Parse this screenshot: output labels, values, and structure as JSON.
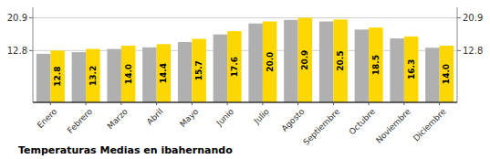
{
  "chart_data": {
    "type": "bar",
    "title": "Temperaturas Medias en ibahernando",
    "categories": [
      "Enero",
      "Febrero",
      "Marzo",
      "Abril",
      "Mayo",
      "Junio",
      "Julio",
      "Agosto",
      "Septiembre",
      "Octubre",
      "Noviembre",
      "Diciembre"
    ],
    "series": [
      {
        "color": "#B0B0B0",
        "values": [
          12.0,
          12.4,
          13.2,
          13.6,
          14.9,
          16.8,
          19.5,
          20.4,
          20.0,
          18.0,
          15.8,
          13.5
        ]
      },
      {
        "color": "#FFD700",
        "data_labels": true,
        "values": [
          12.8,
          13.2,
          14.0,
          14.4,
          15.7,
          17.6,
          20.0,
          20.9,
          20.5,
          18.5,
          16.3,
          14.0
        ],
        "value_labels": [
          "12.8",
          "13.2",
          "14.0",
          "14.4",
          "15.7",
          "17.6",
          "20.0",
          "20.9",
          "20.5",
          "18.5",
          "16.3",
          "14.0"
        ]
      }
    ],
    "ylim": [
      0,
      23.5
    ],
    "yticks": [
      12.8,
      20.9
    ],
    "grid": true
  }
}
